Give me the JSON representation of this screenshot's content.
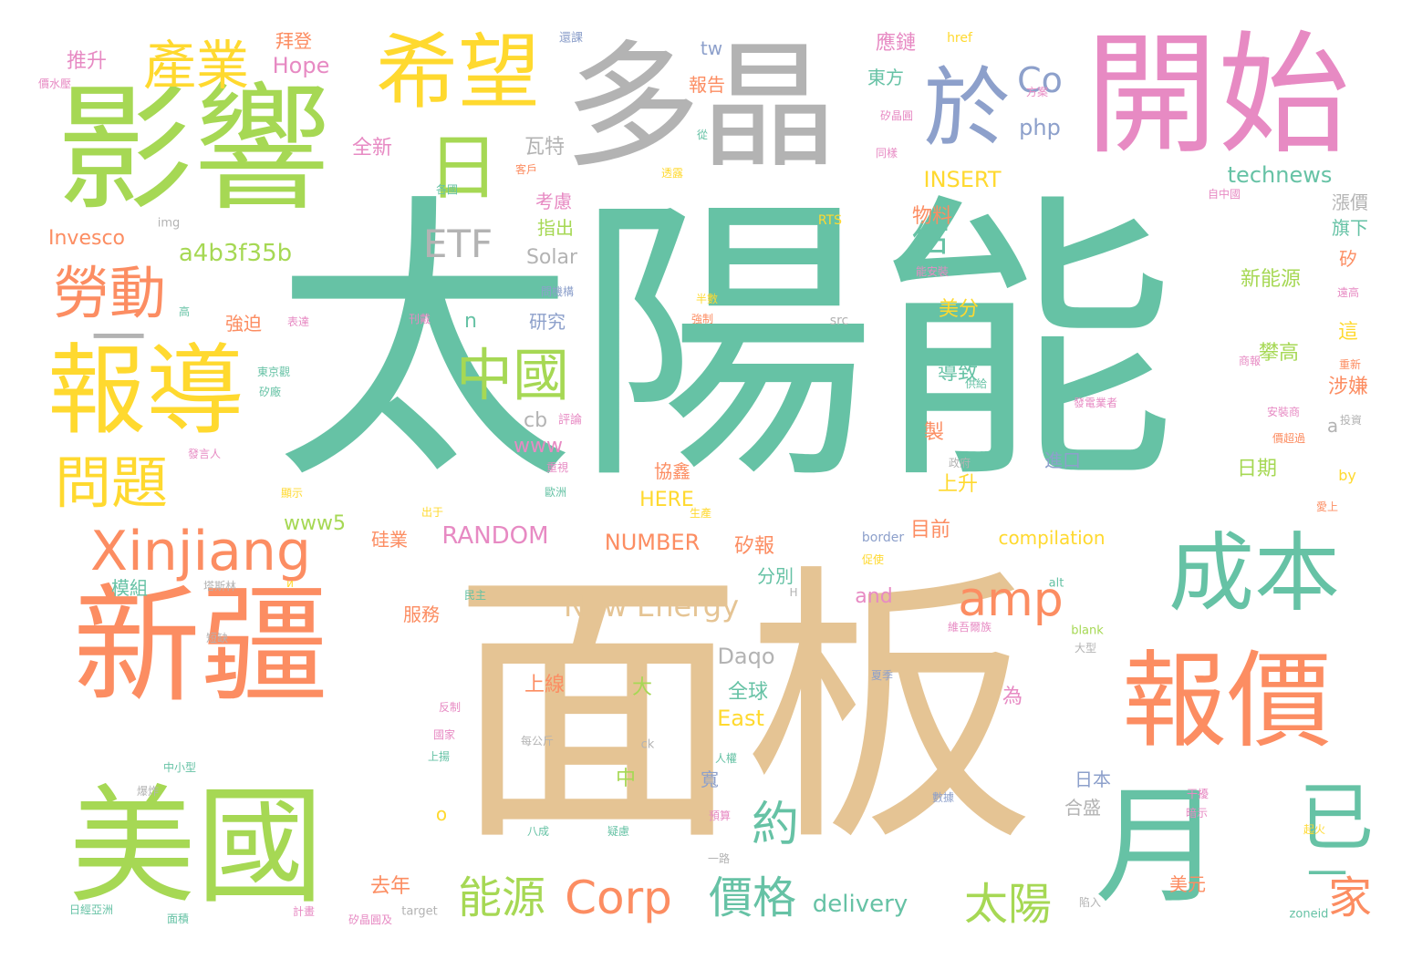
{
  "palette": {
    "teal": "#66c2a5",
    "orange": "#fc8d62",
    "blue": "#8da0cb",
    "pink": "#e78ac3",
    "green": "#a6d854",
    "yellow": "#ffd92f",
    "tan": "#e5c494",
    "gray": "#b3b3b3"
  },
  "words": [
    {
      "text": "太陽能",
      "color": "teal"
    },
    {
      "text": "面板",
      "color": "tan"
    },
    {
      "text": "影響",
      "color": "green"
    },
    {
      "text": "多晶",
      "color": "gray"
    },
    {
      "text": "開始",
      "color": "pink"
    },
    {
      "text": "新疆",
      "color": "orange"
    },
    {
      "text": "美國",
      "color": "green"
    },
    {
      "text": "報導",
      "color": "yellow"
    },
    {
      "text": "報價",
      "color": "orange"
    },
    {
      "text": "希望",
      "color": "yellow"
    },
    {
      "text": "月",
      "color": "teal"
    },
    {
      "text": "已",
      "color": "teal"
    },
    {
      "text": "成本",
      "color": "teal"
    },
    {
      "text": "於",
      "color": "blue"
    },
    {
      "text": "日",
      "color": "green"
    },
    {
      "text": "Xinjiang",
      "color": "orange"
    },
    {
      "text": "產業",
      "color": "yellow"
    },
    {
      "text": "勞動",
      "color": "orange"
    },
    {
      "text": "問題",
      "color": "yellow"
    },
    {
      "text": "中國",
      "color": "green"
    },
    {
      "text": "一",
      "color": "gray"
    },
    {
      "text": "amp",
      "color": "orange"
    },
    {
      "text": "Corp",
      "color": "orange"
    },
    {
      "text": "價格",
      "color": "teal"
    },
    {
      "text": "能源",
      "color": "green"
    },
    {
      "text": "太陽",
      "color": "green"
    },
    {
      "text": "家",
      "color": "orange"
    },
    {
      "text": "一",
      "color": "teal"
    },
    {
      "text": "約",
      "color": "teal"
    },
    {
      "text": "估",
      "color": "teal"
    },
    {
      "text": "ETF",
      "color": "gray"
    },
    {
      "text": "Co",
      "color": "blue"
    },
    {
      "text": "New Energy",
      "color": "tan"
    },
    {
      "text": "a4b3f35b",
      "color": "green"
    },
    {
      "text": "Hope",
      "color": "pink"
    },
    {
      "text": "推升",
      "color": "pink"
    },
    {
      "text": "拜登",
      "color": "orange"
    },
    {
      "text": "Invesco",
      "color": "orange"
    },
    {
      "text": "Solar",
      "color": "gray"
    },
    {
      "text": "technews",
      "color": "teal"
    },
    {
      "text": "INSERT",
      "color": "yellow"
    },
    {
      "text": "RANDOM",
      "color": "pink"
    },
    {
      "text": "NUMBER",
      "color": "orange"
    },
    {
      "text": "HERE",
      "color": "yellow"
    },
    {
      "text": "www5",
      "color": "green"
    },
    {
      "text": "www",
      "color": "pink"
    },
    {
      "text": "Daqo",
      "color": "gray"
    },
    {
      "text": "East",
      "color": "yellow"
    },
    {
      "text": "delivery",
      "color": "teal"
    },
    {
      "text": "compilation",
      "color": "yellow"
    },
    {
      "text": "and",
      "color": "pink"
    },
    {
      "text": "php",
      "color": "blue"
    },
    {
      "text": "tw",
      "color": "blue"
    },
    {
      "text": "href",
      "color": "yellow"
    },
    {
      "text": "img",
      "color": "gray"
    },
    {
      "text": "src",
      "color": "gray"
    },
    {
      "text": "border",
      "color": "blue"
    },
    {
      "text": "alt",
      "color": "teal"
    },
    {
      "text": "blank",
      "color": "green"
    },
    {
      "text": "target",
      "color": "gray"
    },
    {
      "text": "zoneid",
      "color": "teal"
    },
    {
      "text": "by",
      "color": "yellow"
    },
    {
      "text": "RTS",
      "color": "yellow"
    },
    {
      "text": "cb",
      "color": "gray"
    },
    {
      "text": "n",
      "color": "teal"
    },
    {
      "text": "a",
      "color": "gray"
    },
    {
      "text": "o",
      "color": "yellow"
    },
    {
      "text": "ck",
      "color": "gray"
    },
    {
      "text": "H",
      "color": "gray"
    },
    {
      "text": "и",
      "color": "yellow"
    },
    {
      "text": "應鏈",
      "color": "pink"
    },
    {
      "text": "東方",
      "color": "teal"
    },
    {
      "text": "報告",
      "color": "orange"
    },
    {
      "text": "瓦特",
      "color": "gray"
    },
    {
      "text": "考慮",
      "color": "pink"
    },
    {
      "text": "指出",
      "color": "green"
    },
    {
      "text": "全新",
      "color": "pink"
    },
    {
      "text": "物料",
      "color": "orange"
    },
    {
      "text": "漲價",
      "color": "gray"
    },
    {
      "text": "旗下",
      "color": "teal"
    },
    {
      "text": "矽",
      "color": "orange"
    },
    {
      "text": "新能源",
      "color": "green"
    },
    {
      "text": "美分",
      "color": "yellow"
    },
    {
      "text": "攀高",
      "color": "green"
    },
    {
      "text": "這",
      "color": "yellow"
    },
    {
      "text": "涉嫌",
      "color": "orange"
    },
    {
      "text": "研究",
      "color": "blue"
    },
    {
      "text": "強迫",
      "color": "orange"
    },
    {
      "text": "導致",
      "color": "teal"
    },
    {
      "text": "評論",
      "color": "pink"
    },
    {
      "text": "製",
      "color": "orange"
    },
    {
      "text": "進口",
      "color": "blue"
    },
    {
      "text": "日期",
      "color": "green"
    },
    {
      "text": "協鑫",
      "color": "orange"
    },
    {
      "text": "上升",
      "color": "yellow"
    },
    {
      "text": "硅業",
      "color": "orange"
    },
    {
      "text": "目前",
      "color": "orange"
    },
    {
      "text": "矽報",
      "color": "orange"
    },
    {
      "text": "分別",
      "color": "teal"
    },
    {
      "text": "模組",
      "color": "teal"
    },
    {
      "text": "服務",
      "color": "orange"
    },
    {
      "text": "上線",
      "color": "orange"
    },
    {
      "text": "大",
      "color": "green"
    },
    {
      "text": "全球",
      "color": "teal"
    },
    {
      "text": "為",
      "color": "pink"
    },
    {
      "text": "寬",
      "color": "blue"
    },
    {
      "text": "中",
      "color": "green"
    },
    {
      "text": "日本",
      "color": "blue"
    },
    {
      "text": "合盛",
      "color": "gray"
    },
    {
      "text": "美元",
      "color": "orange"
    },
    {
      "text": "去年",
      "color": "orange"
    },
    {
      "text": "還課",
      "color": "blue"
    },
    {
      "text": "價水壓",
      "color": "pink"
    },
    {
      "text": "方案",
      "color": "pink"
    },
    {
      "text": "矽晶圓",
      "color": "pink"
    },
    {
      "text": "從",
      "color": "teal"
    },
    {
      "text": "同樣",
      "color": "pink"
    },
    {
      "text": "客戶",
      "color": "orange"
    },
    {
      "text": "各國",
      "color": "teal"
    },
    {
      "text": "透露",
      "color": "yellow"
    },
    {
      "text": "自中國",
      "color": "pink"
    },
    {
      "text": "問機構",
      "color": "blue"
    },
    {
      "text": "半數",
      "color": "yellow"
    },
    {
      "text": "強制",
      "color": "orange"
    },
    {
      "text": "能安裝",
      "color": "pink"
    },
    {
      "text": "遠高",
      "color": "pink"
    },
    {
      "text": "高",
      "color": "teal"
    },
    {
      "text": "表達",
      "color": "pink"
    },
    {
      "text": "刊戴",
      "color": "pink"
    },
    {
      "text": "東京觀",
      "color": "teal"
    },
    {
      "text": "矽廠",
      "color": "teal"
    },
    {
      "text": "供給",
      "color": "teal"
    },
    {
      "text": "重新",
      "color": "orange"
    },
    {
      "text": "商報",
      "color": "pink"
    },
    {
      "text": "安裝商",
      "color": "pink"
    },
    {
      "text": "價超過",
      "color": "orange"
    },
    {
      "text": "投資",
      "color": "gray"
    },
    {
      "text": "發電業者",
      "color": "pink"
    },
    {
      "text": "發言人",
      "color": "pink"
    },
    {
      "text": "重視",
      "color": "pink"
    },
    {
      "text": "歐洲",
      "color": "teal"
    },
    {
      "text": "出于",
      "color": "yellow"
    },
    {
      "text": "生產",
      "color": "yellow"
    },
    {
      "text": "愛上",
      "color": "orange"
    },
    {
      "text": "民主",
      "color": "teal"
    },
    {
      "text": "塔斯林",
      "color": "gray"
    },
    {
      "text": "維吾爾族",
      "color": "pink"
    },
    {
      "text": "短缺",
      "color": "gray"
    },
    {
      "text": "夏季",
      "color": "blue"
    },
    {
      "text": "大型",
      "color": "gray"
    },
    {
      "text": "反制",
      "color": "pink"
    },
    {
      "text": "國家",
      "color": "pink"
    },
    {
      "text": "上揚",
      "color": "teal"
    },
    {
      "text": "每公斤",
      "color": "gray"
    },
    {
      "text": "人權",
      "color": "teal"
    },
    {
      "text": "中小型",
      "color": "teal"
    },
    {
      "text": "爆炸",
      "color": "gray"
    },
    {
      "text": "數據",
      "color": "blue"
    },
    {
      "text": "八成",
      "color": "teal"
    },
    {
      "text": "預算",
      "color": "pink"
    },
    {
      "text": "暗示",
      "color": "pink"
    },
    {
      "text": "干擾",
      "color": "pink"
    },
    {
      "text": "起火",
      "color": "yellow"
    },
    {
      "text": "一路",
      "color": "gray"
    },
    {
      "text": "日經亞洲",
      "color": "teal"
    },
    {
      "text": "計畫",
      "color": "pink"
    },
    {
      "text": "矽晶圓及",
      "color": "pink"
    },
    {
      "text": "陷入",
      "color": "gray"
    },
    {
      "text": "面積",
      "color": "teal"
    },
    {
      "text": "疑慮",
      "color": "teal"
    },
    {
      "text": "政府",
      "color": "gray"
    },
    {
      "text": "促使",
      "color": "yellow"
    },
    {
      "text": "顯示",
      "color": "yellow"
    }
  ]
}
